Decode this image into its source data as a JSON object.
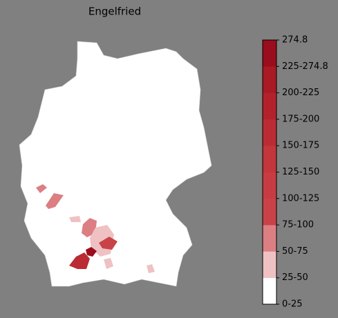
{
  "title": "Engelfried",
  "colorbar": {
    "labels": [
      "0-25",
      "25-50",
      "50-75",
      "75-100",
      "100-125",
      "125-150",
      "150-175",
      "175-200",
      "200-225",
      "225-274.8",
      "274.8"
    ],
    "colors": [
      "#ffffff",
      "#efc1c3",
      "#db7f82",
      "#c94247",
      "#c63c42",
      "#c2363c",
      "#bb2b33",
      "#b3222b",
      "#a81a24",
      "#9a0d1d"
    ]
  }
}
